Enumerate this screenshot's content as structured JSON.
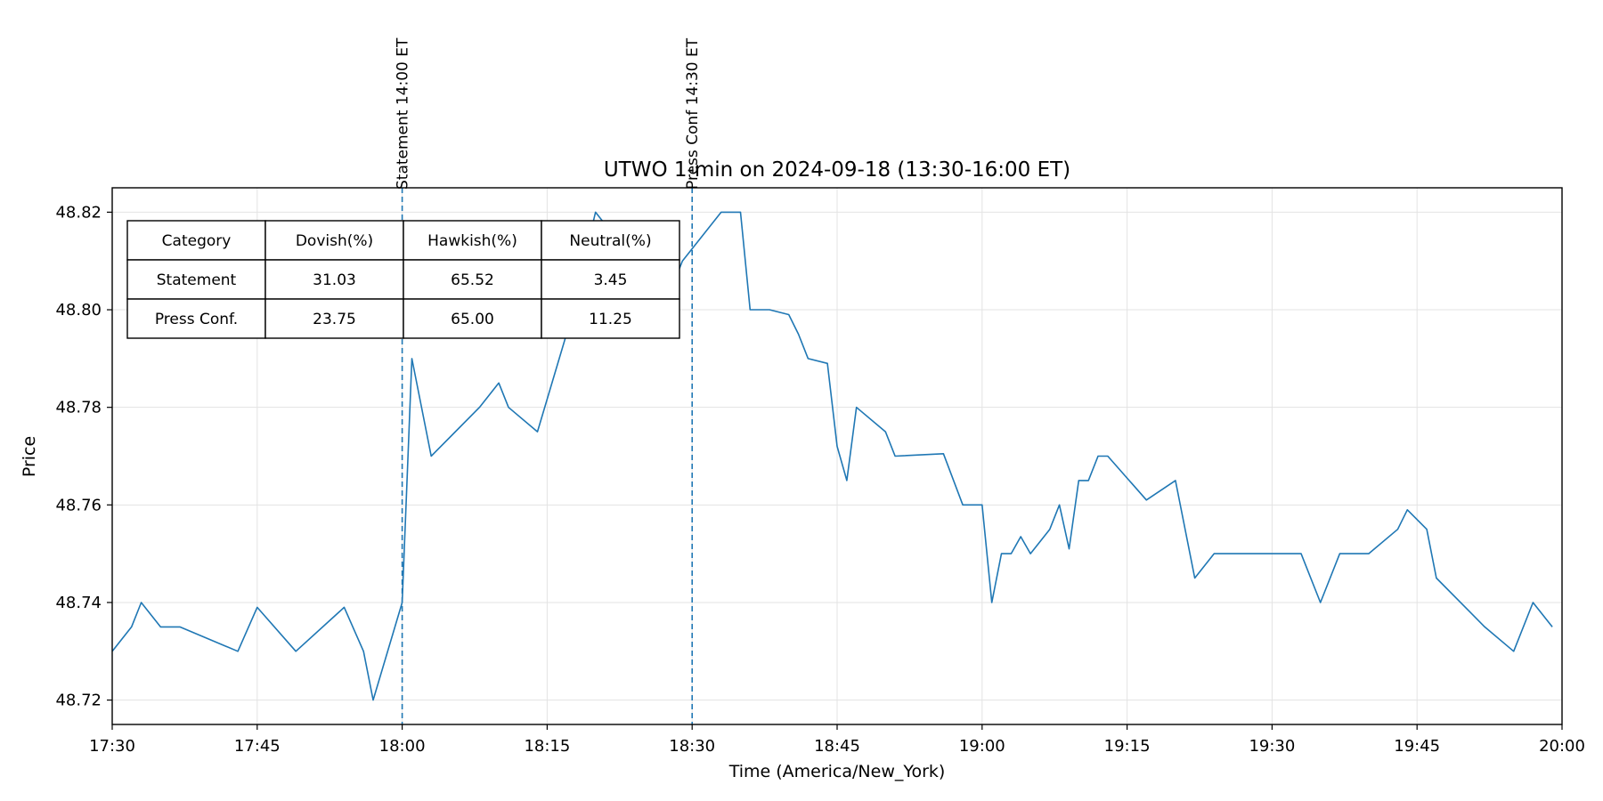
{
  "chart_data": {
    "type": "line",
    "title": "UTWO 1-min on 2024-09-18 (13:30-16:00 ET)",
    "xlabel": "Time (America/New_York)",
    "ylabel": "Price",
    "xlim": [
      "17:30",
      "20:00"
    ],
    "ylim": [
      48.715,
      48.825
    ],
    "grid": true,
    "x_ticks": [
      "17:30",
      "17:45",
      "18:00",
      "18:15",
      "18:30",
      "18:45",
      "19:00",
      "19:15",
      "19:30",
      "19:45",
      "20:00"
    ],
    "y_ticks": [
      "48.72",
      "48.74",
      "48.76",
      "48.78",
      "48.80",
      "48.82"
    ],
    "line_color": "#1f77b4",
    "series": [
      {
        "x": [
          "17:30",
          "17:32",
          "17:33",
          "17:35",
          "17:37",
          "17:43",
          "17:45",
          "17:49",
          "17:54",
          "17:56",
          "17:57",
          "18:00",
          "18:01",
          "18:03",
          "18:08",
          "18:10",
          "18:11",
          "18:14",
          "18:17",
          "18:20",
          "18:21",
          "18:22",
          "18:24",
          "18:25",
          "18:27",
          "18:29",
          "18:33",
          "18:35",
          "18:36",
          "18:38",
          "18:40",
          "18:41",
          "18:42",
          "18:44",
          "18:45",
          "18:46",
          "18:47",
          "18:50",
          "18:51",
          "18:56",
          "18:58",
          "19:00",
          "19:01",
          "19:02",
          "19:03",
          "19:04",
          "19:05",
          "19:07",
          "19:08",
          "19:09",
          "19:10",
          "19:11",
          "19:12",
          "19:13",
          "19:17",
          "19:20",
          "19:22",
          "19:24",
          "19:26",
          "19:33",
          "19:35",
          "19:37",
          "19:40",
          "19:43",
          "19:44",
          "19:46",
          "19:47",
          "19:52",
          "19:55",
          "19:57",
          "19:59"
        ],
        "values": [
          48.73,
          48.735,
          48.74,
          48.735,
          48.735,
          48.73,
          48.739,
          48.73,
          48.739,
          48.73,
          48.72,
          48.74,
          48.79,
          48.77,
          48.78,
          48.785,
          48.78,
          48.775,
          48.795,
          48.82,
          48.8175,
          48.818,
          48.81,
          48.8,
          48.8,
          48.81,
          48.82,
          48.82,
          48.8,
          48.8,
          48.799,
          48.795,
          48.79,
          48.789,
          48.772,
          48.765,
          48.78,
          48.775,
          48.77,
          48.7705,
          48.76,
          48.76,
          48.74,
          48.75,
          48.75,
          48.7535,
          48.75,
          48.755,
          48.76,
          48.751,
          48.765,
          48.765,
          48.77,
          48.77,
          48.761,
          48.765,
          48.745,
          48.75,
          48.75,
          48.75,
          48.74,
          48.75,
          48.75,
          48.755,
          48.759,
          48.755,
          48.745,
          48.735,
          48.73,
          48.74,
          48.735
        ]
      }
    ],
    "events": [
      {
        "x": "18:00",
        "label": "Statement 14:00 ET"
      },
      {
        "x": "18:30",
        "label": "Press Conf 14:30 ET"
      }
    ],
    "table": {
      "headers": [
        "Category",
        "Dovish(%)",
        "Hawkish(%)",
        "Neutral(%)"
      ],
      "rows": [
        [
          "Statement",
          "31.03",
          "65.52",
          "3.45"
        ],
        [
          "Press Conf.",
          "23.75",
          "65.00",
          "11.25"
        ]
      ]
    }
  }
}
